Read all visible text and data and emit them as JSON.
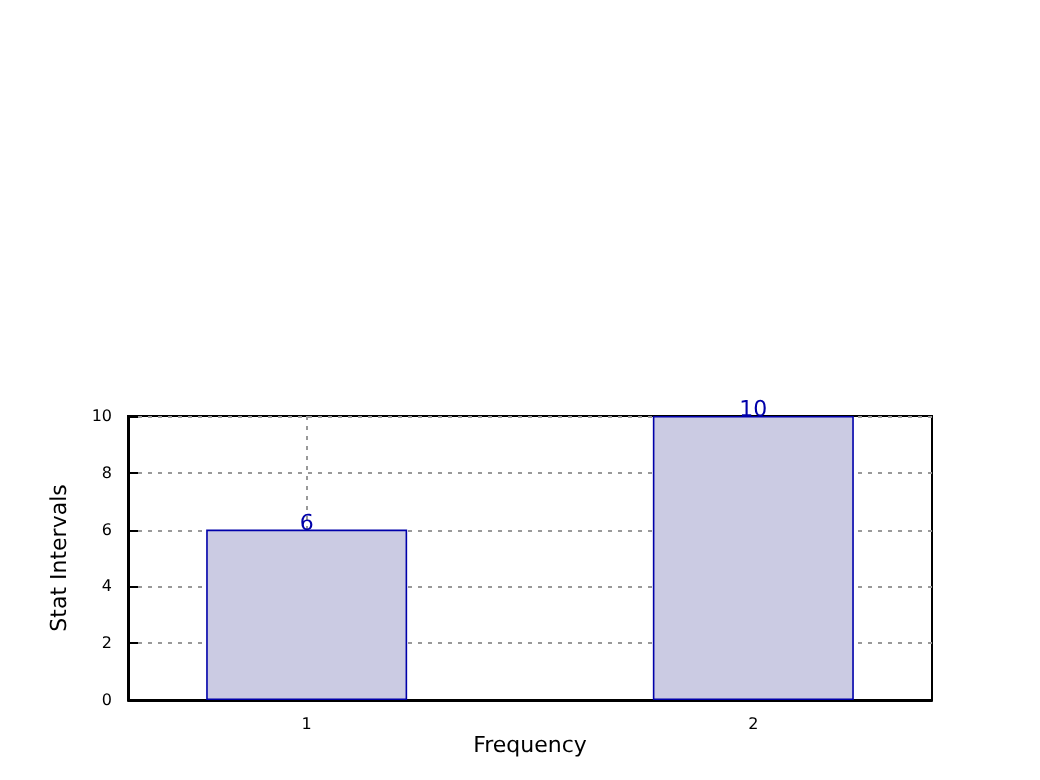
{
  "chart_data": {
    "type": "bar",
    "xlabel": "Frequency",
    "ylabel": "Stat Intervals",
    "x": [
      1,
      2
    ],
    "values": [
      6,
      10
    ],
    "color": "#cbcbe3",
    "xlim": [
      0.6,
      2.4
    ],
    "xticks": [
      1,
      2
    ],
    "ylim": [
      0,
      10
    ],
    "yticks": [
      0,
      2,
      4,
      6,
      8,
      10
    ],
    "grid": true,
    "data_labels": true
  }
}
